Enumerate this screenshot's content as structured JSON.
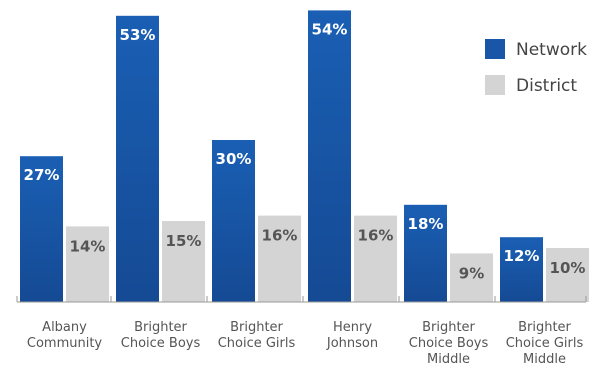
{
  "chart_data": {
    "type": "bar",
    "categories": [
      [
        "Albany",
        "Community"
      ],
      [
        "Brighter",
        "Choice Boys"
      ],
      [
        "Brighter",
        "Choice Girls"
      ],
      [
        "Henry",
        "Johnson"
      ],
      [
        "Brighter",
        "Choice Boys",
        "Middle"
      ],
      [
        "Brighter",
        "Choice Girls",
        "Middle"
      ]
    ],
    "series": [
      {
        "name": "Network",
        "values": [
          27,
          53,
          30,
          54,
          18,
          12
        ],
        "labels": [
          "27%",
          "53%",
          "30%",
          "54%",
          "18%",
          "12%"
        ],
        "color": "#1a56a8",
        "label_color": "#ffffff"
      },
      {
        "name": "District",
        "values": [
          14,
          15,
          16,
          16,
          9,
          10
        ],
        "labels": [
          "14%",
          "15%",
          "16%",
          "16%",
          "9%",
          "10%"
        ],
        "color": "#d4d4d4",
        "label_color": "#555555"
      }
    ],
    "ylim": [
      0,
      55
    ],
    "grid": false,
    "legend_position": "top-right",
    "title": "",
    "xlabel": "",
    "ylabel": ""
  }
}
